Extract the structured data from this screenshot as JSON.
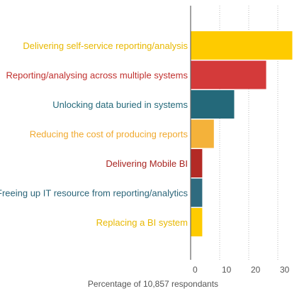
{
  "chart_data": {
    "type": "bar",
    "orientation": "horizontal",
    "categories": [
      "Delivering self-service reporting/analysis",
      "Reporting/analysing across multiple systems",
      "Unlocking data buried in systems",
      "Reducing the cost of producing reports",
      "Delivering Mobile BI",
      "Freeing up IT resource from reporting/analytics",
      "Replacing a BI system"
    ],
    "values": [
      35,
      26,
      15,
      8,
      4,
      4,
      4
    ],
    "colors": [
      "#fecb00",
      "#d43a3a",
      "#24697a",
      "#f4b23a",
      "#b32a25",
      "#2f6b7f",
      "#fecb00"
    ],
    "label_colors": [
      "#e8b800",
      "#c0302e",
      "#24697a",
      "#f0a92e",
      "#a82420",
      "#2a6478",
      "#e8b800"
    ],
    "xlabel": "Percentage of 10,857 respondants",
    "ylabel": "",
    "xticks": [
      0,
      10,
      20,
      30
    ],
    "xlim": [
      0,
      36
    ],
    "grid": "vertical dotted",
    "legend": "none"
  }
}
